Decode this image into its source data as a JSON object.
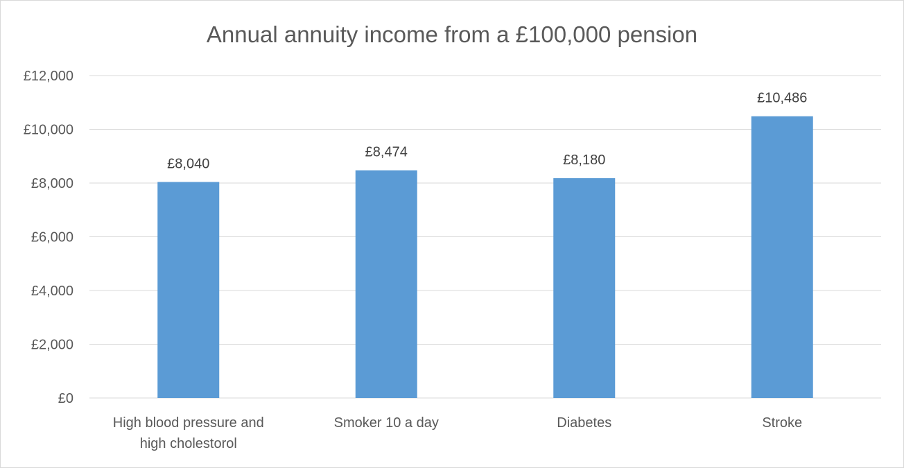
{
  "chart_data": {
    "type": "bar",
    "title": "Annual annuity income from a £100,000 pension",
    "xlabel": "",
    "ylabel": "",
    "categories": [
      [
        "High blood pressure and",
        "high cholestorol"
      ],
      [
        "Smoker 10 a day"
      ],
      [
        "Diabetes"
      ],
      [
        "Stroke"
      ]
    ],
    "values": [
      8040,
      8474,
      8180,
      10486
    ],
    "data_labels": [
      "£8,040",
      "£8,474",
      "£8,180",
      "£10,486"
    ],
    "ylim": [
      0,
      12000
    ],
    "yticks": [
      0,
      2000,
      4000,
      6000,
      8000,
      10000,
      12000
    ],
    "ytick_labels": [
      "£0",
      "£2,000",
      "£4,000",
      "£6,000",
      "£8,000",
      "£10,000",
      "£12,000"
    ],
    "grid": true,
    "legend": "none",
    "bar_color": "#5b9bd5"
  }
}
